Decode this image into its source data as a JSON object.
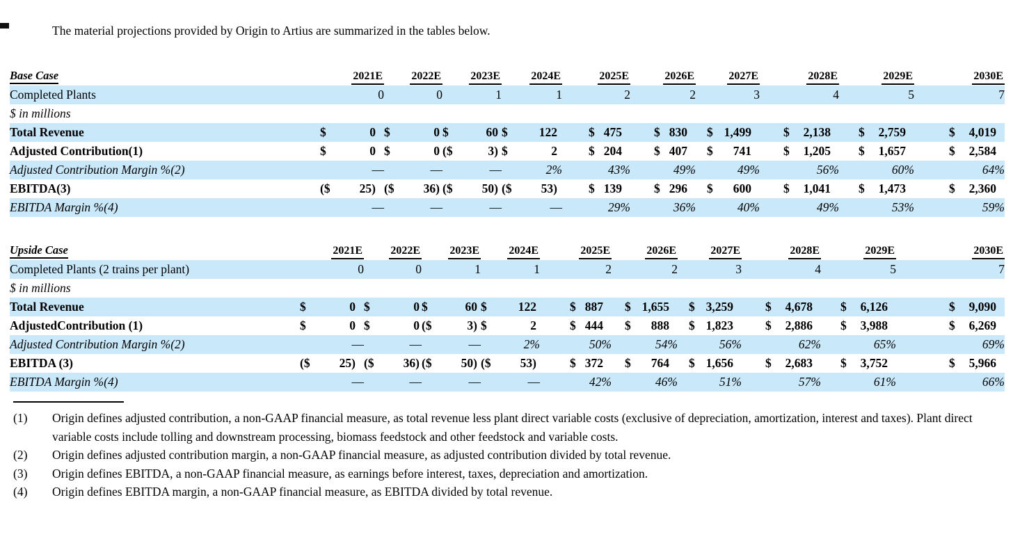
{
  "intro": "The material projections provided by Origin to Artius are summarized in the tables below.",
  "colors": {
    "row_highlight": "#c9e8fa"
  },
  "tables": [
    {
      "title": "Base Case",
      "years": [
        "2021E",
        "2022E",
        "2023E",
        "2024E",
        "2025E",
        "2026E",
        "2027E",
        "2028E",
        "2029E",
        "2030E"
      ],
      "plants": {
        "label": "Completed Plants",
        "values": [
          "0",
          "0",
          "1",
          "1",
          "2",
          "2",
          "3",
          "4",
          "5",
          "7"
        ]
      },
      "unit_note": "$ in millions",
      "rows": [
        {
          "label": "Total Revenue",
          "style": "bold",
          "cells": [
            {
              "p": "$",
              "v": "0"
            },
            {
              "p": "$",
              "v": "0"
            },
            {
              "p": "$",
              "v": "60"
            },
            {
              "p": "$",
              "v": "122"
            },
            {
              "p": "$",
              "v": "475"
            },
            {
              "p": "$",
              "v": "830"
            },
            {
              "p": "$",
              "v": "1,499"
            },
            {
              "p": "$",
              "v": "2,138"
            },
            {
              "p": "$",
              "v": "2,759"
            },
            {
              "p": "$",
              "v": "4,019"
            }
          ]
        },
        {
          "label": "Adjusted Contribution(1)",
          "style": "bold",
          "cells": [
            {
              "p": "$",
              "v": "0"
            },
            {
              "p": "$",
              "v": "0"
            },
            {
              "p": "($",
              "v": "3)"
            },
            {
              "p": "$",
              "v": "2"
            },
            {
              "p": "$",
              "v": "204"
            },
            {
              "p": "$",
              "v": "407"
            },
            {
              "p": "$",
              "v": "741"
            },
            {
              "p": "$",
              "v": "1,205"
            },
            {
              "p": "$",
              "v": "1,657"
            },
            {
              "p": "$",
              "v": "2,584"
            }
          ]
        },
        {
          "label": "Adjusted Contribution Margin %(2)",
          "style": "italic",
          "cells": [
            {
              "v": "—"
            },
            {
              "v": "—"
            },
            {
              "v": "—"
            },
            {
              "v": "2%"
            },
            {
              "v": "43%"
            },
            {
              "v": "49%"
            },
            {
              "v": "49%"
            },
            {
              "v": "56%"
            },
            {
              "v": "60%"
            },
            {
              "v": "64%"
            }
          ]
        },
        {
          "label": "EBITDA(3)",
          "style": "bold",
          "cells": [
            {
              "p": "($",
              "v": "25)"
            },
            {
              "p": "($",
              "v": "36)"
            },
            {
              "p": "($",
              "v": "50)"
            },
            {
              "p": "($",
              "v": "53)"
            },
            {
              "p": "$",
              "v": "139"
            },
            {
              "p": "$",
              "v": "296"
            },
            {
              "p": "$",
              "v": "600"
            },
            {
              "p": "$",
              "v": "1,041"
            },
            {
              "p": "$",
              "v": "1,473"
            },
            {
              "p": "$",
              "v": "2,360"
            }
          ]
        },
        {
          "label": "EBITDA Margin %(4)",
          "style": "italic",
          "cells": [
            {
              "v": "—"
            },
            {
              "v": "—"
            },
            {
              "v": "—"
            },
            {
              "v": "—"
            },
            {
              "v": "29%"
            },
            {
              "v": "36%"
            },
            {
              "v": "40%"
            },
            {
              "v": "49%"
            },
            {
              "v": "53%"
            },
            {
              "v": "59%"
            }
          ]
        }
      ]
    },
    {
      "title": "Upside Case",
      "years": [
        "2021E",
        "2022E",
        "2023E",
        "2024E",
        "2025E",
        "2026E",
        "2027E",
        "2028E",
        "2029E",
        "2030E"
      ],
      "plants": {
        "label": "Completed Plants (2 trains per plant)",
        "values": [
          "0",
          "0",
          "1",
          "1",
          "2",
          "2",
          "3",
          "4",
          "5",
          "7"
        ]
      },
      "unit_note": "$ in millions",
      "rows": [
        {
          "label": "Total Revenue",
          "style": "bold",
          "cells": [
            {
              "p": "$",
              "v": "0"
            },
            {
              "p": "$",
              "v": "0"
            },
            {
              "p": "$",
              "v": "60"
            },
            {
              "p": "$",
              "v": "122"
            },
            {
              "p": "$",
              "v": "887"
            },
            {
              "p": "$",
              "v": "1,655"
            },
            {
              "p": "$",
              "v": "3,259"
            },
            {
              "p": "$",
              "v": "4,678"
            },
            {
              "p": "$",
              "v": "6,126"
            },
            {
              "p": "$",
              "v": "9,090"
            }
          ]
        },
        {
          "label": "AdjustedContribution (1)",
          "style": "bold",
          "cells": [
            {
              "p": "$",
              "v": "0"
            },
            {
              "p": "$",
              "v": "0"
            },
            {
              "p": "($",
              "v": "3)"
            },
            {
              "p": "$",
              "v": "2"
            },
            {
              "p": "$",
              "v": "444"
            },
            {
              "p": "$",
              "v": "888"
            },
            {
              "p": "$",
              "v": "1,823"
            },
            {
              "p": "$",
              "v": "2,886"
            },
            {
              "p": "$",
              "v": "3,988"
            },
            {
              "p": "$",
              "v": "6,269"
            }
          ]
        },
        {
          "label": "Adjusted Contribution Margin %(2)",
          "style": "italic",
          "cells": [
            {
              "v": "—"
            },
            {
              "v": "—"
            },
            {
              "v": "—"
            },
            {
              "v": "2%"
            },
            {
              "v": "50%"
            },
            {
              "v": "54%"
            },
            {
              "v": "56%"
            },
            {
              "v": "62%"
            },
            {
              "v": "65%"
            },
            {
              "v": "69%"
            }
          ]
        },
        {
          "label": "EBITDA (3)",
          "style": "bold",
          "cells": [
            {
              "p": "($",
              "v": "25)"
            },
            {
              "p": "($",
              "v": "36)"
            },
            {
              "p": "($",
              "v": "50)"
            },
            {
              "p": "($",
              "v": "53)"
            },
            {
              "p": "$",
              "v": "372"
            },
            {
              "p": "$",
              "v": "764"
            },
            {
              "p": "$",
              "v": "1,656"
            },
            {
              "p": "$",
              "v": "2,683"
            },
            {
              "p": "$",
              "v": "3,752"
            },
            {
              "p": "$",
              "v": "5,966"
            }
          ]
        },
        {
          "label": "EBITDA Margin %(4)",
          "style": "italic",
          "cells": [
            {
              "v": "—"
            },
            {
              "v": "—"
            },
            {
              "v": "—"
            },
            {
              "v": "—"
            },
            {
              "v": "42%"
            },
            {
              "v": "46%"
            },
            {
              "v": "51%"
            },
            {
              "v": "57%"
            },
            {
              "v": "61%"
            },
            {
              "v": "66%"
            }
          ]
        }
      ]
    }
  ],
  "footnotes": [
    {
      "num": "(1)",
      "text": "Origin defines adjusted contribution, a non-GAAP financial measure, as total revenue less plant direct variable costs (exclusive of depreciation, amortization, interest and taxes). Plant direct variable costs include tolling and downstream processing, biomass feedstock and other feedstock and variable costs."
    },
    {
      "num": "(2)",
      "text": "Origin defines adjusted contribution margin, a non-GAAP financial measure, as adjusted contribution divided by total revenue."
    },
    {
      "num": "(3)",
      "text": "Origin defines EBITDA, a non-GAAP financial measure, as earnings before interest, taxes, depreciation and amortization."
    },
    {
      "num": "(4)",
      "text": "Origin defines EBITDA margin, a non-GAAP financial measure, as EBITDA divided by total revenue."
    }
  ]
}
